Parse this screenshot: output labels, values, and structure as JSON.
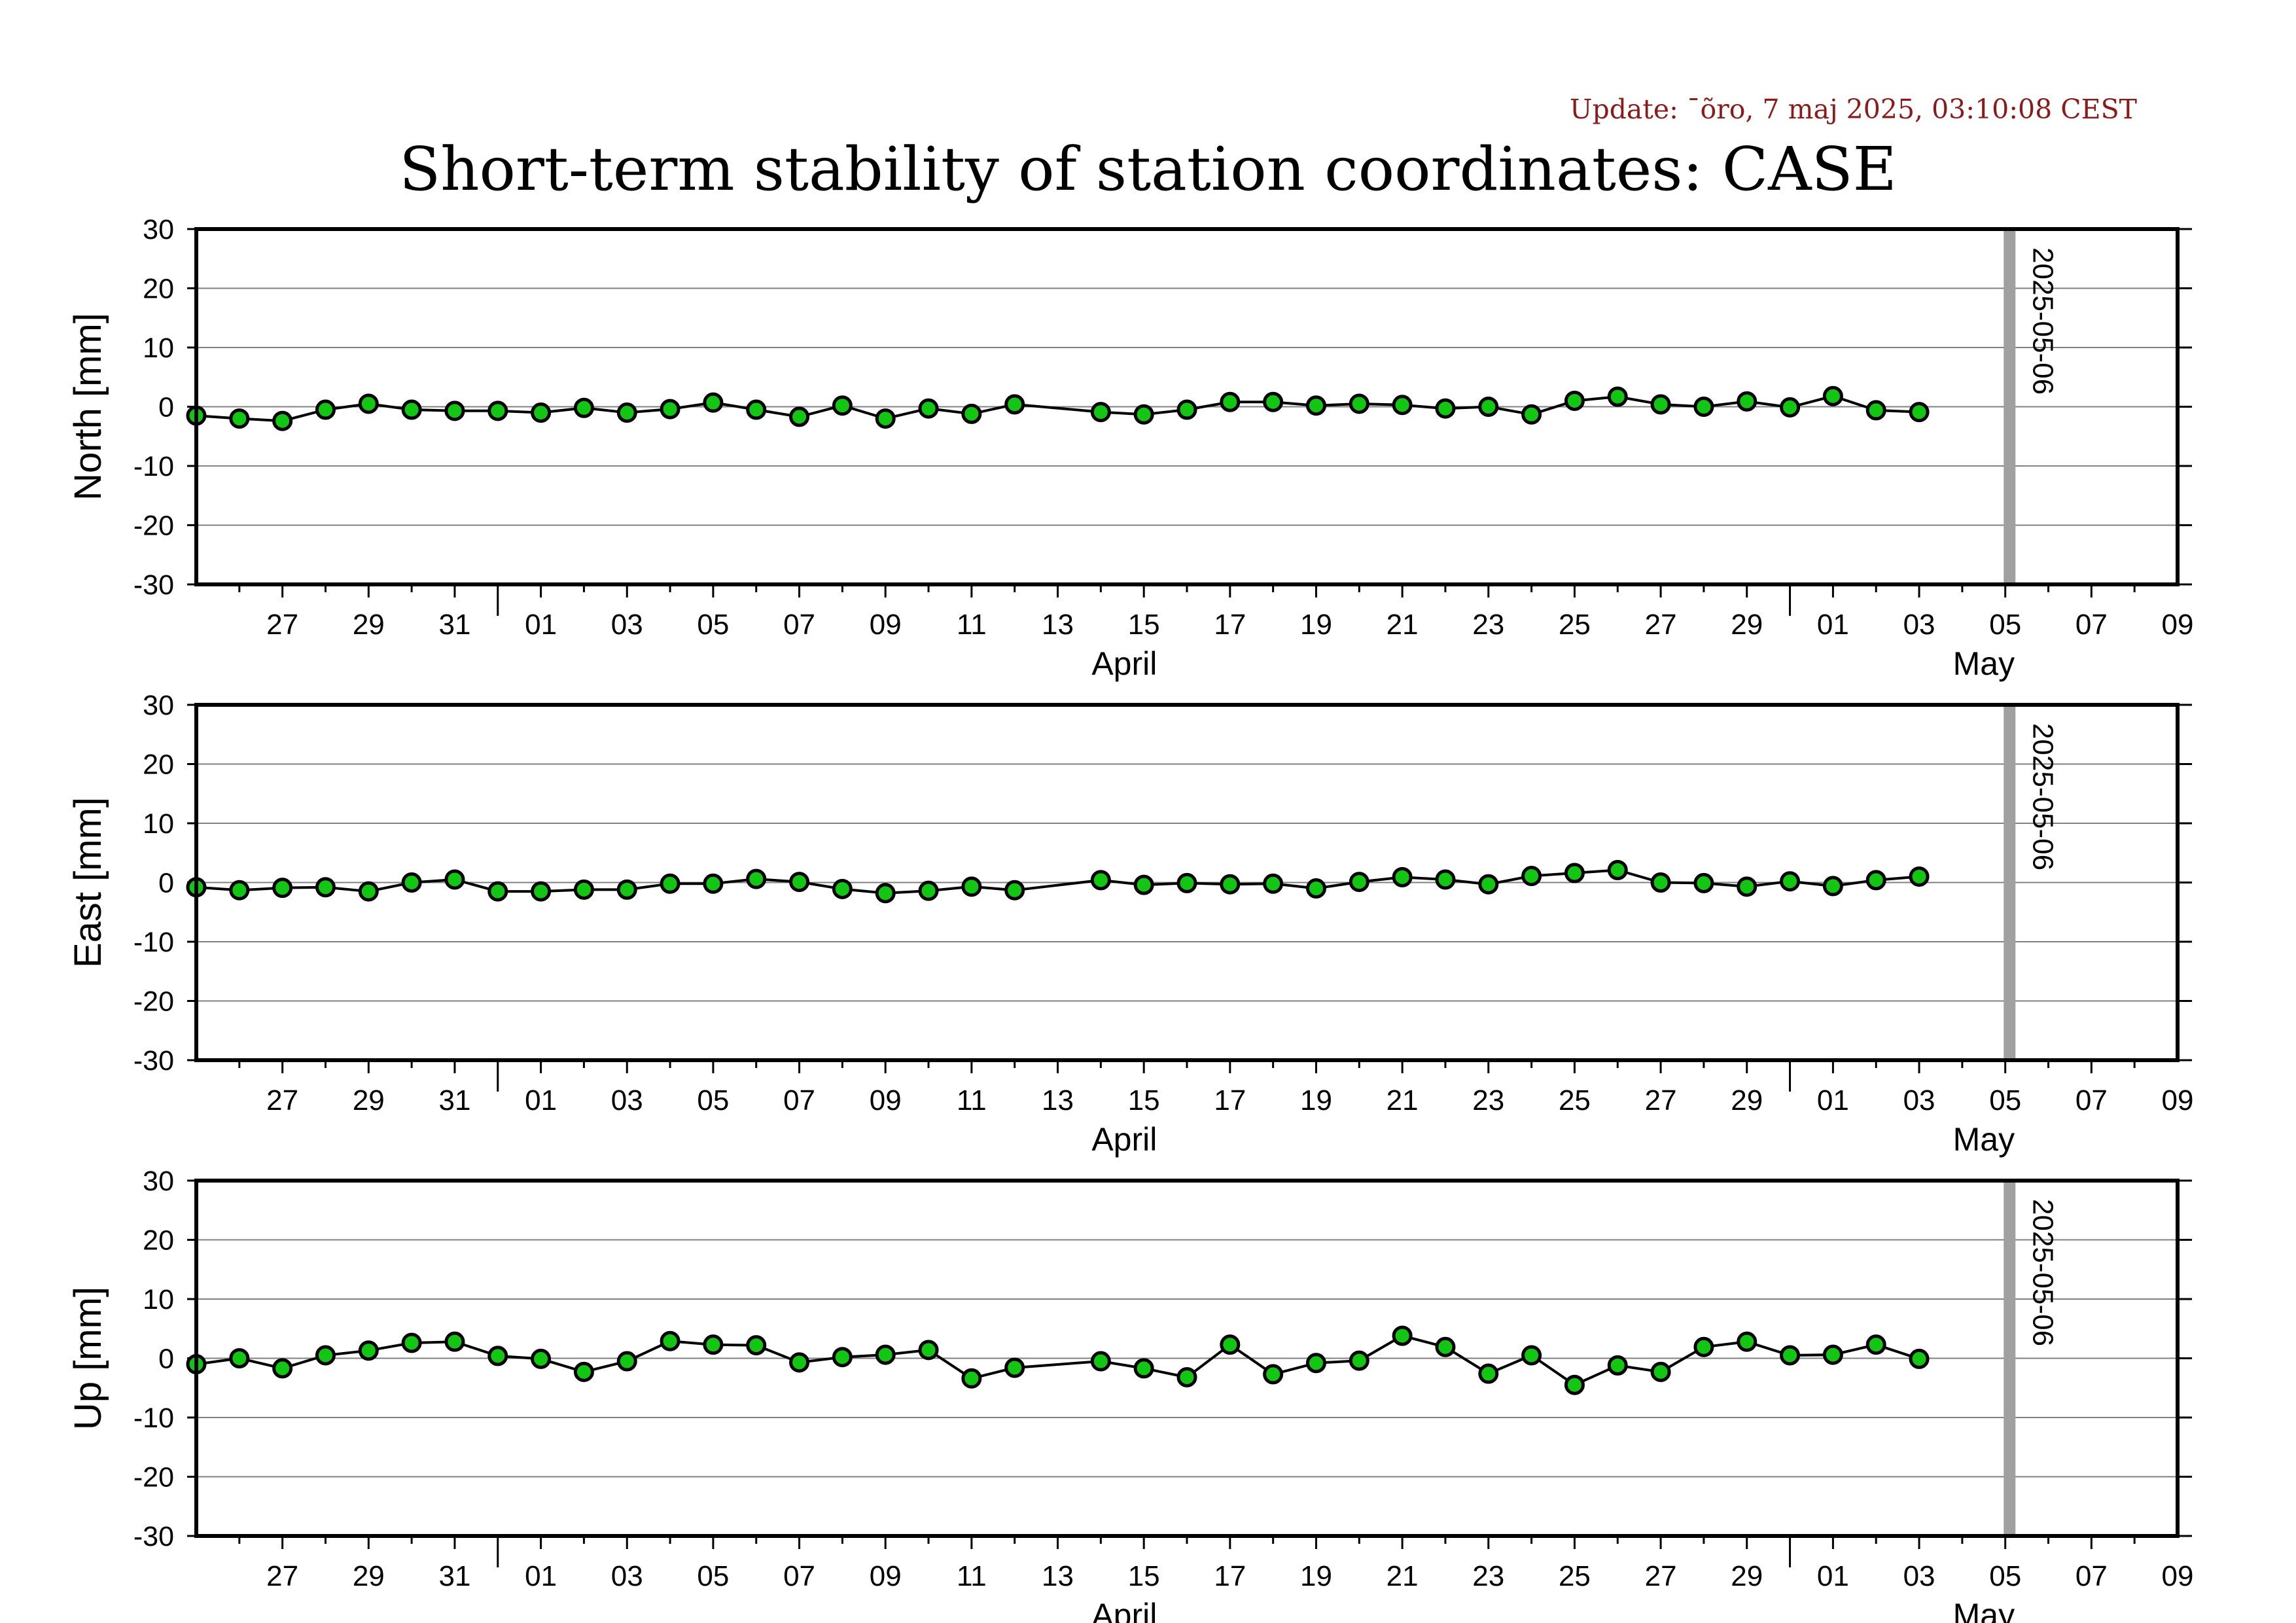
{
  "update_text": "Update: ¯õro, 7 maj 2025, 03:10:08 CEST",
  "title": "Short-term stability of station coordinates: CASE",
  "colors": {
    "point_fill": "#13c613",
    "point_stroke": "#000000",
    "grid": "#808080",
    "marker_line": "#a0a0a0",
    "update_text": "#8b1a1a"
  },
  "chart_data": [
    {
      "type": "line",
      "ylabel": "North [mm]",
      "ylim": [
        -30,
        30
      ],
      "yticks": [
        30,
        20,
        10,
        0,
        -10,
        -20,
        -30
      ],
      "x_start": "2025-03-25",
      "x_end": "2025-05-10",
      "xtick_labels": [
        "27",
        "29",
        "31",
        "01",
        "03",
        "05",
        "07",
        "09",
        "11",
        "13",
        "15",
        "17",
        "19",
        "21",
        "23",
        "25",
        "27",
        "29",
        "01",
        "03",
        "05",
        "07",
        "09"
      ],
      "month_labels": [
        "April",
        "May"
      ],
      "vline_label": "2025-05-06",
      "grid": true,
      "series": [
        {
          "x": [
            "2025-03-25",
            "2025-03-26",
            "2025-03-27",
            "2025-03-28",
            "2025-03-29",
            "2025-03-30",
            "2025-03-31",
            "2025-04-01",
            "2025-04-02",
            "2025-04-03",
            "2025-04-04",
            "2025-04-05",
            "2025-04-06",
            "2025-04-07",
            "2025-04-08",
            "2025-04-09",
            "2025-04-10",
            "2025-04-11",
            "2025-04-12",
            "2025-04-13",
            "2025-04-15",
            "2025-04-16",
            "2025-04-17",
            "2025-04-18",
            "2025-04-19",
            "2025-04-20",
            "2025-04-21",
            "2025-04-22",
            "2025-04-23",
            "2025-04-24",
            "2025-04-25",
            "2025-04-26",
            "2025-04-27",
            "2025-04-28",
            "2025-04-29",
            "2025-04-30",
            "2025-05-01",
            "2025-05-02",
            "2025-05-03",
            "2025-05-04"
          ],
          "values": [
            -1.5,
            -2,
            -2.4,
            -0.5,
            0.5,
            -0.5,
            -0.7,
            -0.7,
            -1,
            -0.2,
            -1,
            -0.4,
            0.7,
            -0.5,
            -1.7,
            0.2,
            -2,
            -0.3,
            -1.2,
            0.4,
            -0.9,
            -1.3,
            -0.5,
            0.8,
            0.8,
            0.2,
            0.5,
            0.3,
            -0.3,
            0,
            -1.3,
            1,
            1.7,
            0.4,
            0,
            0.9,
            -0.1,
            1.8,
            -0.6,
            -0.9
          ]
        }
      ]
    },
    {
      "type": "line",
      "ylabel": "East [mm]",
      "ylim": [
        -30,
        30
      ],
      "yticks": [
        30,
        20,
        10,
        0,
        -10,
        -20,
        -30
      ],
      "x_start": "2025-03-25",
      "x_end": "2025-05-10",
      "xtick_labels": [
        "27",
        "29",
        "31",
        "01",
        "03",
        "05",
        "07",
        "09",
        "11",
        "13",
        "15",
        "17",
        "19",
        "21",
        "23",
        "25",
        "27",
        "29",
        "01",
        "03",
        "05",
        "07",
        "09"
      ],
      "month_labels": [
        "April",
        "May"
      ],
      "vline_label": "2025-05-06",
      "grid": true,
      "series": [
        {
          "x": [
            "2025-03-25",
            "2025-03-26",
            "2025-03-27",
            "2025-03-28",
            "2025-03-29",
            "2025-03-30",
            "2025-03-31",
            "2025-04-01",
            "2025-04-02",
            "2025-04-03",
            "2025-04-04",
            "2025-04-05",
            "2025-04-06",
            "2025-04-07",
            "2025-04-08",
            "2025-04-09",
            "2025-04-10",
            "2025-04-11",
            "2025-04-12",
            "2025-04-13",
            "2025-04-15",
            "2025-04-16",
            "2025-04-17",
            "2025-04-18",
            "2025-04-19",
            "2025-04-20",
            "2025-04-21",
            "2025-04-22",
            "2025-04-23",
            "2025-04-24",
            "2025-04-25",
            "2025-04-26",
            "2025-04-27",
            "2025-04-28",
            "2025-04-29",
            "2025-04-30",
            "2025-05-01",
            "2025-05-02",
            "2025-05-03",
            "2025-05-04"
          ],
          "values": [
            -0.8,
            -1.3,
            -0.9,
            -0.8,
            -1.5,
            0,
            0.5,
            -1.5,
            -1.5,
            -1.2,
            -1.2,
            -0.2,
            -0.2,
            0.6,
            0.1,
            -1.1,
            -1.8,
            -1.4,
            -0.7,
            -1.3,
            0.4,
            -0.4,
            -0.1,
            -0.3,
            -0.2,
            -1,
            0.1,
            0.9,
            0.5,
            -0.3,
            1.1,
            1.6,
            2.1,
            0,
            -0.1,
            -0.7,
            0.2,
            -0.6,
            0.4,
            1
          ]
        }
      ]
    },
    {
      "type": "line",
      "ylabel": "Up [mm]",
      "ylim": [
        -30,
        30
      ],
      "yticks": [
        30,
        20,
        10,
        0,
        -10,
        -20,
        -30
      ],
      "x_start": "2025-03-25",
      "x_end": "2025-05-10",
      "xtick_labels": [
        "27",
        "29",
        "31",
        "01",
        "03",
        "05",
        "07",
        "09",
        "11",
        "13",
        "15",
        "17",
        "19",
        "21",
        "23",
        "25",
        "27",
        "29",
        "01",
        "03",
        "05",
        "07",
        "09"
      ],
      "month_labels": [
        "April",
        "May"
      ],
      "vline_label": "2025-05-06",
      "grid": true,
      "series": [
        {
          "x": [
            "2025-03-25",
            "2025-03-26",
            "2025-03-27",
            "2025-03-28",
            "2025-03-29",
            "2025-03-30",
            "2025-03-31",
            "2025-04-01",
            "2025-04-02",
            "2025-04-03",
            "2025-04-04",
            "2025-04-05",
            "2025-04-06",
            "2025-04-07",
            "2025-04-08",
            "2025-04-09",
            "2025-04-10",
            "2025-04-11",
            "2025-04-12",
            "2025-04-13",
            "2025-04-15",
            "2025-04-16",
            "2025-04-17",
            "2025-04-18",
            "2025-04-19",
            "2025-04-20",
            "2025-04-21",
            "2025-04-22",
            "2025-04-23",
            "2025-04-24",
            "2025-04-25",
            "2025-04-26",
            "2025-04-27",
            "2025-04-28",
            "2025-04-29",
            "2025-04-30",
            "2025-05-01",
            "2025-05-02",
            "2025-05-03",
            "2025-05-04"
          ],
          "values": [
            -1,
            0,
            -1.7,
            0.5,
            1.3,
            2.6,
            2.8,
            0.4,
            -0.1,
            -2.3,
            -0.5,
            2.9,
            2.3,
            2.2,
            -0.7,
            0.2,
            0.6,
            1.4,
            -3.4,
            -1.6,
            -0.5,
            -1.7,
            -3.2,
            2.3,
            -2.7,
            -0.8,
            -0.4,
            3.8,
            1.9,
            -2.6,
            0.5,
            -4.5,
            -1.2,
            -2.3,
            1.9,
            2.8,
            0.5,
            0.6,
            2.3,
            -0.1
          ]
        }
      ]
    }
  ]
}
